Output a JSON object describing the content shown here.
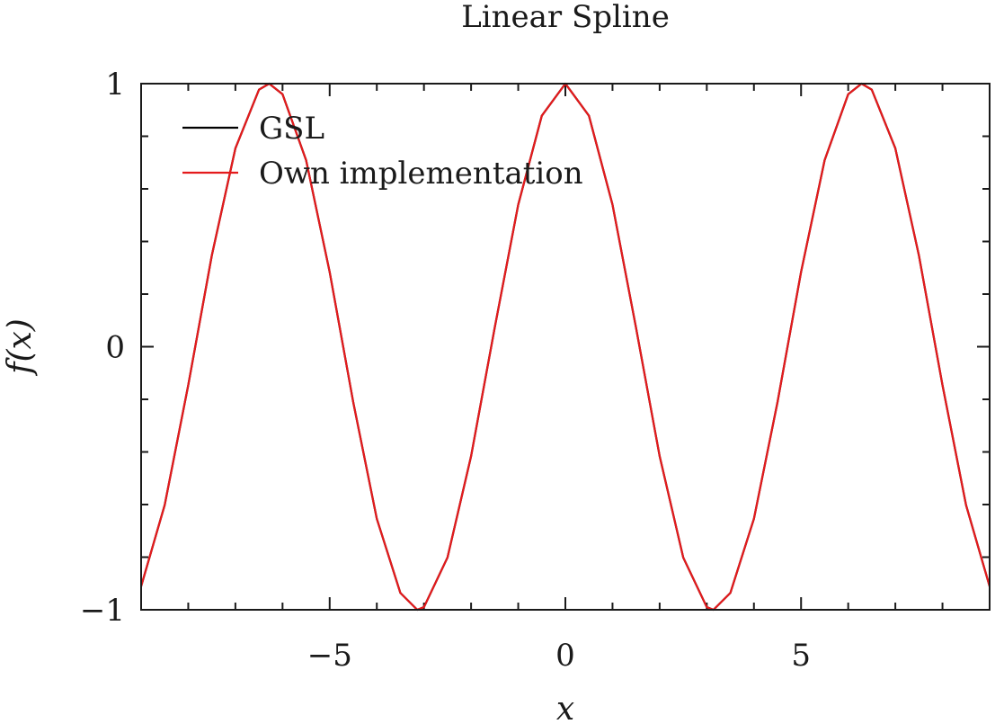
{
  "chart_data": {
    "type": "line",
    "title": "Linear Spline",
    "xlabel": "x",
    "ylabel": "f(x)",
    "xlim": [
      -9,
      9
    ],
    "ylim": [
      -1,
      1
    ],
    "xticks": [
      -5,
      0,
      5
    ],
    "xtick_labels": [
      "−5",
      "0",
      "5"
    ],
    "yticks": [
      -1,
      0,
      1
    ],
    "ytick_labels": [
      "−1",
      "0",
      "1"
    ],
    "grid": false,
    "legend_position": "top-left",
    "series": [
      {
        "name": "GSL",
        "color": "#000000",
        "x": [
          -9,
          -8.5,
          -8,
          -7.5,
          -7,
          -6.5,
          -6.2832,
          -6,
          -5.5,
          -5,
          -4.5,
          -4,
          -3.5,
          -3.1416,
          -3,
          -2.5,
          -2,
          -1.5,
          -1,
          -0.5,
          0,
          0.5,
          1,
          1.5,
          2,
          2.5,
          3,
          3.1416,
          3.5,
          4,
          4.5,
          5,
          5.5,
          6,
          6.2832,
          6.5,
          7,
          7.5,
          8,
          8.5,
          9
        ],
        "y": [
          -0.911,
          -0.602,
          -0.146,
          0.347,
          0.754,
          0.977,
          1.0,
          0.96,
          0.709,
          0.284,
          -0.211,
          -0.654,
          -0.936,
          -1.0,
          -0.99,
          -0.801,
          -0.416,
          0.071,
          0.54,
          0.878,
          1.0,
          0.878,
          0.54,
          0.071,
          -0.416,
          -0.801,
          -0.99,
          -1.0,
          -0.936,
          -0.654,
          -0.211,
          0.284,
          0.709,
          0.96,
          1.0,
          0.977,
          0.754,
          0.347,
          -0.146,
          -0.602,
          -0.911
        ]
      },
      {
        "name": "Own implementation",
        "color": "#e41a1c",
        "x": [
          -9,
          -8.5,
          -8,
          -7.5,
          -7,
          -6.5,
          -6.2832,
          -6,
          -5.5,
          -5,
          -4.5,
          -4,
          -3.5,
          -3.1416,
          -3,
          -2.5,
          -2,
          -1.5,
          -1,
          -0.5,
          0,
          0.5,
          1,
          1.5,
          2,
          2.5,
          3,
          3.1416,
          3.5,
          4,
          4.5,
          5,
          5.5,
          6,
          6.2832,
          6.5,
          7,
          7.5,
          8,
          8.5,
          9
        ],
        "y": [
          -0.911,
          -0.602,
          -0.146,
          0.347,
          0.754,
          0.977,
          1.0,
          0.96,
          0.709,
          0.284,
          -0.211,
          -0.654,
          -0.936,
          -1.0,
          -0.99,
          -0.801,
          -0.416,
          0.071,
          0.54,
          0.878,
          1.0,
          0.878,
          0.54,
          0.071,
          -0.416,
          -0.801,
          -0.99,
          -1.0,
          -0.936,
          -0.654,
          -0.211,
          0.284,
          0.709,
          0.96,
          1.0,
          0.977,
          0.754,
          0.347,
          -0.146,
          -0.602,
          -0.911
        ]
      }
    ]
  }
}
